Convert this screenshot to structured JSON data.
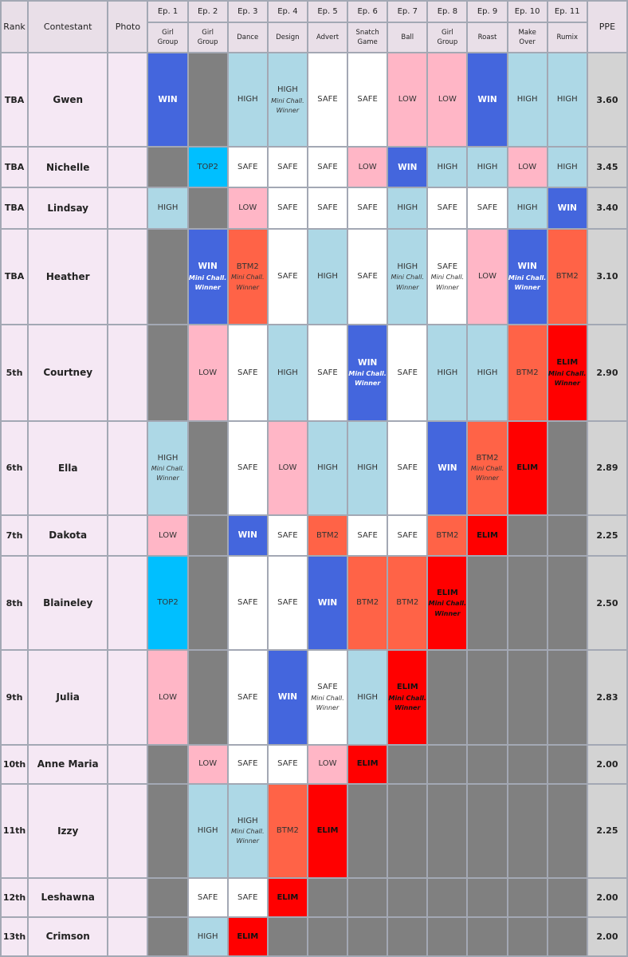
{
  "header": {
    "rank": "Rank",
    "contestant": "Contestant",
    "photo": "Photo",
    "ppe": "PPE",
    "episodes": [
      {
        "num": "Ep. 1",
        "title": [
          "Girl",
          "Group"
        ]
      },
      {
        "num": "Ep. 2",
        "title": [
          "Girl",
          "Group"
        ]
      },
      {
        "num": "Ep. 3",
        "title": [
          "Dance"
        ]
      },
      {
        "num": "Ep. 4",
        "title": [
          "Design"
        ]
      },
      {
        "num": "Ep. 5",
        "title": [
          "Advert"
        ]
      },
      {
        "num": "Ep. 6",
        "title": [
          "Snatch",
          "Game"
        ]
      },
      {
        "num": "Ep. 7",
        "title": [
          "Ball"
        ]
      },
      {
        "num": "Ep. 8",
        "title": [
          "Girl",
          "Group"
        ]
      },
      {
        "num": "Ep. 9",
        "title": [
          "Roast"
        ]
      },
      {
        "num": "Ep. 10",
        "title": [
          "Make",
          "Over"
        ]
      },
      {
        "num": "Ep. 11",
        "title": [
          "Rumix"
        ]
      }
    ]
  },
  "mini_label": [
    "Mini Chall.",
    "Winner"
  ],
  "colors": {
    "WIN": "#4466dd",
    "TOP2": "#00bfff",
    "HIGH": "#add8e6",
    "SAFE": "#ffffff",
    "LOW": "#ffb6c6",
    "BTM2": "#ff6347",
    "ELIM": "#ff0000",
    "NONE": "#808080",
    "name_bg": "#f5e8f4",
    "header_bg": "#e9dfe8",
    "ppe_bg": "#d3d3d3"
  },
  "contestants": [
    {
      "rank": "TBA",
      "name": "Gwen",
      "ppe": "3.60",
      "results": [
        {
          "r": "WIN"
        },
        {
          "r": ""
        },
        {
          "r": "HIGH"
        },
        {
          "r": "HIGH",
          "mini": true
        },
        {
          "r": "SAFE"
        },
        {
          "r": "SAFE"
        },
        {
          "r": "LOW"
        },
        {
          "r": "LOW"
        },
        {
          "r": "WIN"
        },
        {
          "r": "HIGH"
        },
        {
          "r": "HIGH"
        }
      ]
    },
    {
      "rank": "TBA",
      "name": "Nichelle",
      "ppe": "3.45",
      "results": [
        {
          "r": ""
        },
        {
          "r": "TOP2"
        },
        {
          "r": "SAFE"
        },
        {
          "r": "SAFE"
        },
        {
          "r": "SAFE"
        },
        {
          "r": "LOW"
        },
        {
          "r": "WIN"
        },
        {
          "r": "HIGH"
        },
        {
          "r": "HIGH"
        },
        {
          "r": "LOW"
        },
        {
          "r": "HIGH"
        }
      ]
    },
    {
      "rank": "TBA",
      "name": "Lindsay",
      "ppe": "3.40",
      "results": [
        {
          "r": "HIGH"
        },
        {
          "r": ""
        },
        {
          "r": "LOW"
        },
        {
          "r": "SAFE"
        },
        {
          "r": "SAFE"
        },
        {
          "r": "SAFE"
        },
        {
          "r": "HIGH"
        },
        {
          "r": "SAFE"
        },
        {
          "r": "SAFE"
        },
        {
          "r": "HIGH"
        },
        {
          "r": "WIN"
        }
      ]
    },
    {
      "rank": "TBA",
      "name": "Heather",
      "ppe": "3.10",
      "results": [
        {
          "r": ""
        },
        {
          "r": "WIN",
          "mini": true
        },
        {
          "r": "BTM2",
          "mini": true
        },
        {
          "r": "SAFE"
        },
        {
          "r": "HIGH"
        },
        {
          "r": "SAFE"
        },
        {
          "r": "HIGH",
          "mini": true
        },
        {
          "r": "SAFE",
          "mini": true
        },
        {
          "r": "LOW"
        },
        {
          "r": "WIN",
          "mini": true
        },
        {
          "r": "BTM2"
        }
      ]
    },
    {
      "rank": "5th",
      "name": "Courtney",
      "ppe": "2.90",
      "results": [
        {
          "r": ""
        },
        {
          "r": "LOW"
        },
        {
          "r": "SAFE"
        },
        {
          "r": "HIGH"
        },
        {
          "r": "SAFE"
        },
        {
          "r": "WIN",
          "mini": true
        },
        {
          "r": "SAFE"
        },
        {
          "r": "HIGH"
        },
        {
          "r": "HIGH"
        },
        {
          "r": "BTM2"
        },
        {
          "r": "ELIM",
          "mini": true
        }
      ]
    },
    {
      "rank": "6th",
      "name": "Ella",
      "ppe": "2.89",
      "results": [
        {
          "r": "HIGH",
          "mini": true
        },
        {
          "r": ""
        },
        {
          "r": "SAFE"
        },
        {
          "r": "LOW"
        },
        {
          "r": "HIGH"
        },
        {
          "r": "HIGH"
        },
        {
          "r": "SAFE"
        },
        {
          "r": "WIN"
        },
        {
          "r": "BTM2",
          "mini": true
        },
        {
          "r": "ELIM"
        },
        {
          "r": ""
        }
      ]
    },
    {
      "rank": "7th",
      "name": "Dakota",
      "ppe": "2.25",
      "results": [
        {
          "r": "LOW"
        },
        {
          "r": ""
        },
        {
          "r": "WIN"
        },
        {
          "r": "SAFE"
        },
        {
          "r": "BTM2"
        },
        {
          "r": "SAFE"
        },
        {
          "r": "SAFE"
        },
        {
          "r": "BTM2"
        },
        {
          "r": "ELIM"
        },
        {
          "r": ""
        },
        {
          "r": ""
        }
      ]
    },
    {
      "rank": "8th",
      "name": "Blaineley",
      "ppe": "2.50",
      "results": [
        {
          "r": "TOP2"
        },
        {
          "r": ""
        },
        {
          "r": "SAFE"
        },
        {
          "r": "SAFE"
        },
        {
          "r": "WIN"
        },
        {
          "r": "BTM2"
        },
        {
          "r": "BTM2"
        },
        {
          "r": "ELIM",
          "mini": true
        },
        {
          "r": ""
        },
        {
          "r": ""
        },
        {
          "r": ""
        }
      ]
    },
    {
      "rank": "9th",
      "name": "Julia",
      "ppe": "2.83",
      "results": [
        {
          "r": "LOW"
        },
        {
          "r": ""
        },
        {
          "r": "SAFE"
        },
        {
          "r": "WIN"
        },
        {
          "r": "SAFE",
          "mini": true
        },
        {
          "r": "HIGH"
        },
        {
          "r": "ELIM",
          "mini": true
        },
        {
          "r": ""
        },
        {
          "r": ""
        },
        {
          "r": ""
        },
        {
          "r": ""
        }
      ]
    },
    {
      "rank": "10th",
      "name": "Anne Maria",
      "ppe": "2.00",
      "results": [
        {
          "r": ""
        },
        {
          "r": "LOW"
        },
        {
          "r": "SAFE"
        },
        {
          "r": "SAFE"
        },
        {
          "r": "LOW"
        },
        {
          "r": "ELIM"
        },
        {
          "r": ""
        },
        {
          "r": ""
        },
        {
          "r": ""
        },
        {
          "r": ""
        },
        {
          "r": ""
        }
      ]
    },
    {
      "rank": "11th",
      "name": "Izzy",
      "ppe": "2.25",
      "results": [
        {
          "r": ""
        },
        {
          "r": "HIGH"
        },
        {
          "r": "HIGH",
          "mini": true
        },
        {
          "r": "BTM2"
        },
        {
          "r": "ELIM"
        },
        {
          "r": ""
        },
        {
          "r": ""
        },
        {
          "r": ""
        },
        {
          "r": ""
        },
        {
          "r": ""
        },
        {
          "r": ""
        }
      ]
    },
    {
      "rank": "12th",
      "name": "Leshawna",
      "ppe": "2.00",
      "results": [
        {
          "r": ""
        },
        {
          "r": "SAFE"
        },
        {
          "r": "SAFE"
        },
        {
          "r": "ELIM"
        },
        {
          "r": ""
        },
        {
          "r": ""
        },
        {
          "r": ""
        },
        {
          "r": ""
        },
        {
          "r": ""
        },
        {
          "r": ""
        },
        {
          "r": ""
        }
      ]
    },
    {
      "rank": "13th",
      "name": "Crimson",
      "ppe": "2.00",
      "results": [
        {
          "r": ""
        },
        {
          "r": "HIGH"
        },
        {
          "r": "ELIM"
        },
        {
          "r": ""
        },
        {
          "r": ""
        },
        {
          "r": ""
        },
        {
          "r": ""
        },
        {
          "r": ""
        },
        {
          "r": ""
        },
        {
          "r": ""
        },
        {
          "r": ""
        }
      ]
    }
  ]
}
